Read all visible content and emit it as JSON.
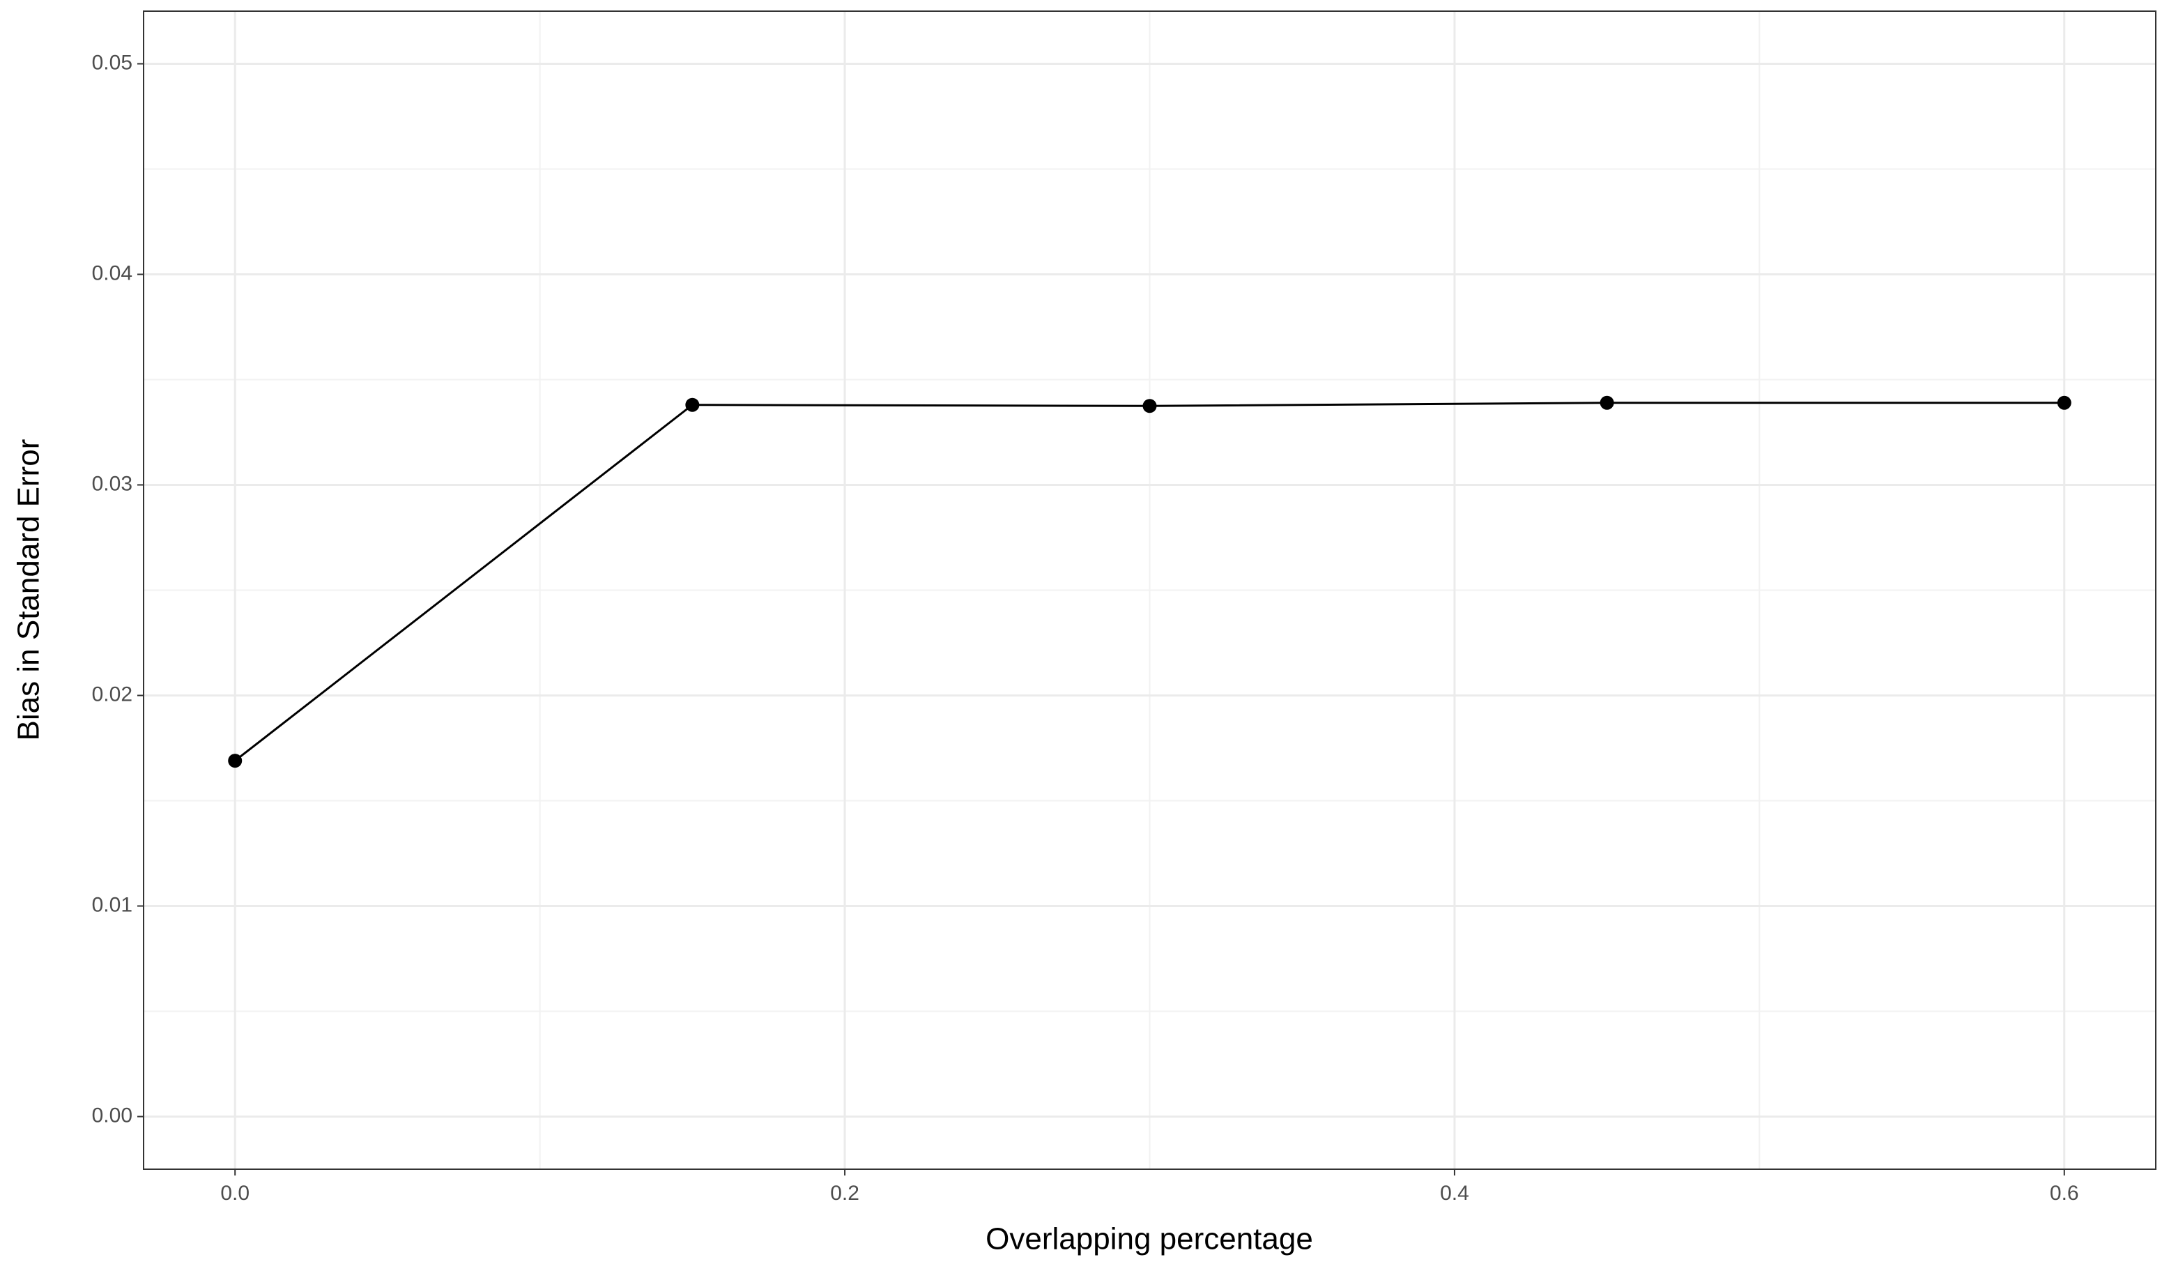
{
  "chart_data": {
    "type": "line",
    "x_label": "Overlapping percentage",
    "y_label": "Bias in Standard Error",
    "x": [
      0,
      0.15,
      0.3,
      0.45,
      0.6
    ],
    "series": [
      {
        "color": "#000000",
        "values": [
          0.0169,
          0.0338,
          0.03375,
          0.0339,
          0.0339
        ]
      }
    ],
    "xlim": [
      -0.03,
      0.63
    ],
    "ylim": [
      -0.0025,
      0.0525
    ],
    "xticks": [
      {
        "value": 0,
        "label": "0.0"
      },
      0.2,
      0.4,
      0.6
    ],
    "yticks": [
      {
        "value": 0,
        "label": "0.00"
      },
      0.01,
      0.02,
      0.03,
      0.04,
      0.05
    ],
    "grid": true
  }
}
